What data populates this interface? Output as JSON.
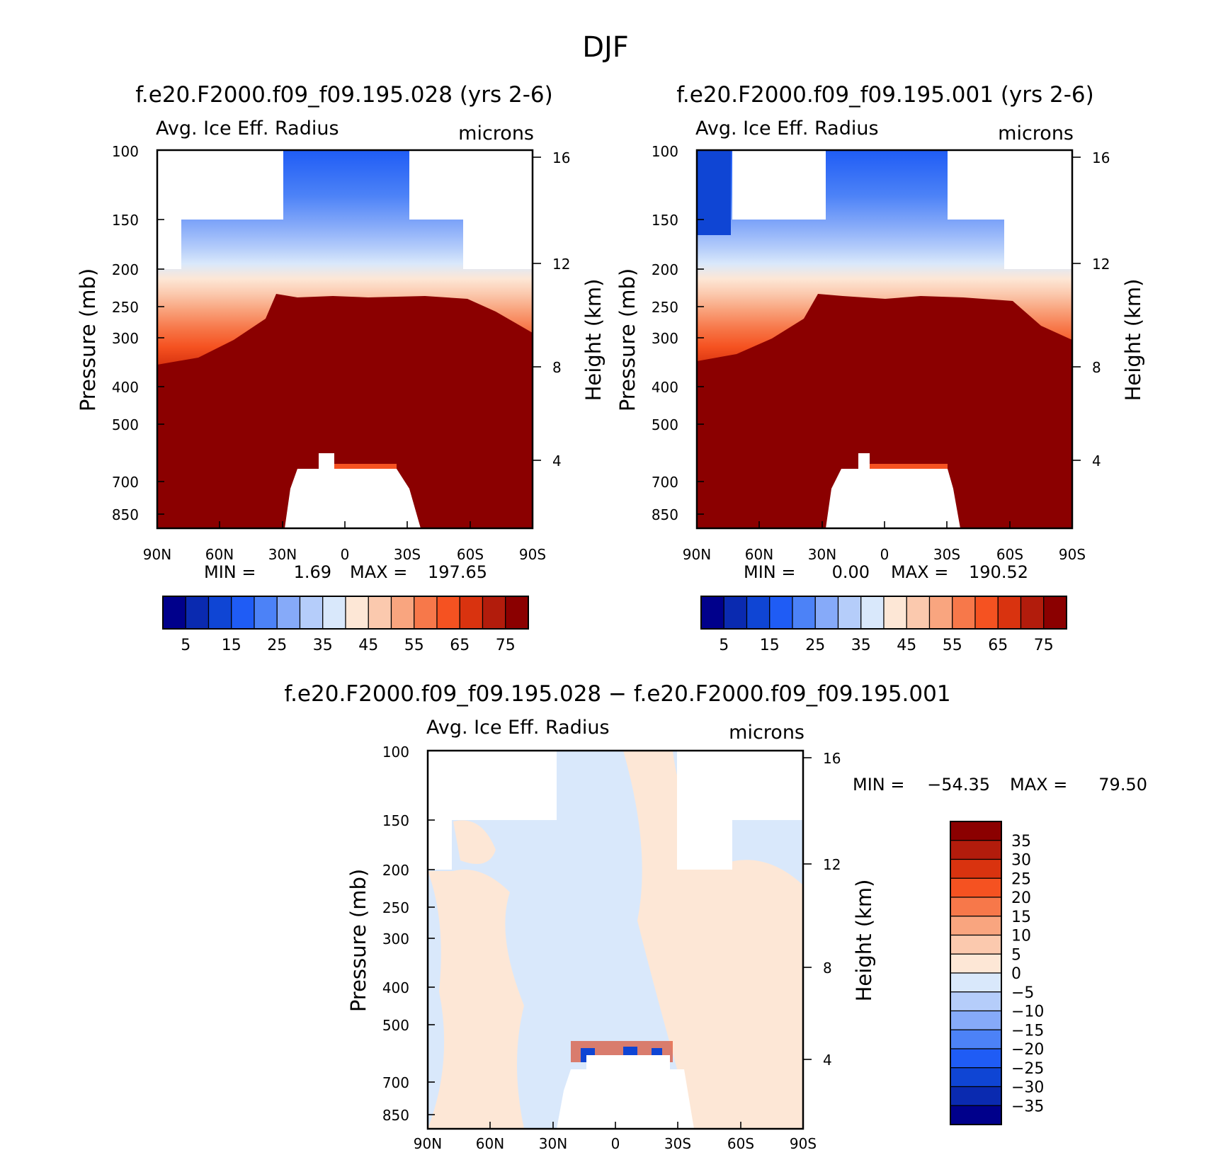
{
  "figure": {
    "title": "DJF"
  },
  "panel_titles": {
    "left": "f.e20.F2000.f09_f09.195.028 (yrs 2-6)",
    "right": "f.e20.F2000.f09_f09.195.001 (yrs 2-6)",
    "bottom": "f.e20.F2000.f09_f09.195.028 − f.e20.F2000.f09_f09.195.001"
  },
  "common": {
    "variable": "Avg. Ice Eff. Radius",
    "units": "microns",
    "ylabel_left": "Pressure (mb)",
    "ylabel_right": "Height (km)"
  },
  "stats": {
    "left": {
      "min_label": "MIN =",
      "min": "1.69",
      "max_label": "MAX =",
      "max": "197.65"
    },
    "right": {
      "min_label": "MIN =",
      "min": "0.00",
      "max_label": "MAX =",
      "max": "190.52"
    },
    "diff": {
      "min_label": "MIN =",
      "min": "−54.35",
      "max_label": "MAX =",
      "max": "79.50"
    }
  },
  "chart_data": [
    {
      "type": "heatmap",
      "name": "left",
      "title": "f.e20.F2000.f09_f09.195.028 (yrs 2-6)",
      "ylabel": "Pressure (mb)",
      "y2label": "Height (km)",
      "x_ticks": [
        "90N",
        "60N",
        "30N",
        "0",
        "30S",
        "60S",
        "90S"
      ],
      "y_ticks": [
        100,
        150,
        200,
        250,
        300,
        400,
        500,
        700,
        850
      ],
      "y2_ticks": [
        16,
        12,
        8,
        4
      ],
      "colorbar_labels": [
        "5",
        "15",
        "25",
        "35",
        "45",
        "55",
        "65",
        "75"
      ],
      "colors": [
        "#00008b",
        "#0a2ab0",
        "#0f45d4",
        "#1f5cf5",
        "#4c82f7",
        "#86aaf9",
        "#b5cdfa",
        "#d9e8fb",
        "#fde7d6",
        "#fbc9ae",
        "#f9a57f",
        "#f7784a",
        "#f55221",
        "#d9330f",
        "#b21c0c",
        "#8b0000"
      ]
    },
    {
      "type": "heatmap",
      "name": "right",
      "title": "f.e20.F2000.f09_f09.195.001 (yrs 2-6)",
      "ylabel": "Pressure (mb)",
      "y2label": "Height (km)",
      "x_ticks": [
        "90N",
        "60N",
        "30N",
        "0",
        "30S",
        "60S",
        "90S"
      ],
      "y_ticks": [
        100,
        150,
        200,
        250,
        300,
        400,
        500,
        700,
        850
      ],
      "y2_ticks": [
        16,
        12,
        8,
        4
      ],
      "colorbar_labels": [
        "5",
        "15",
        "25",
        "35",
        "45",
        "55",
        "65",
        "75"
      ]
    },
    {
      "type": "heatmap",
      "name": "difference",
      "title": "f.e20.F2000.f09_f09.195.028 − f.e20.F2000.f09_f09.195.001",
      "ylabel": "Pressure (mb)",
      "y2label": "Height (km)",
      "x_ticks": [
        "90N",
        "60N",
        "30N",
        "0",
        "30S",
        "60S",
        "90S"
      ],
      "y_ticks": [
        100,
        150,
        200,
        250,
        300,
        400,
        500,
        700,
        850
      ],
      "y2_ticks": [
        16,
        12,
        8,
        4
      ],
      "colorbar_labels": [
        "35",
        "30",
        "25",
        "20",
        "15",
        "10",
        "5",
        "0",
        "−5",
        "−10",
        "−15",
        "−20",
        "−25",
        "−30",
        "−35"
      ],
      "colors": [
        "#8b0000",
        "#b21c0c",
        "#d9330f",
        "#f55221",
        "#f7784a",
        "#f9a57f",
        "#fbc9ae",
        "#fde7d6",
        "#d9e8fb",
        "#b5cdfa",
        "#86aaf9",
        "#4c82f7",
        "#1f5cf5",
        "#0f45d4",
        "#0a2ab0",
        "#00008b"
      ]
    }
  ]
}
